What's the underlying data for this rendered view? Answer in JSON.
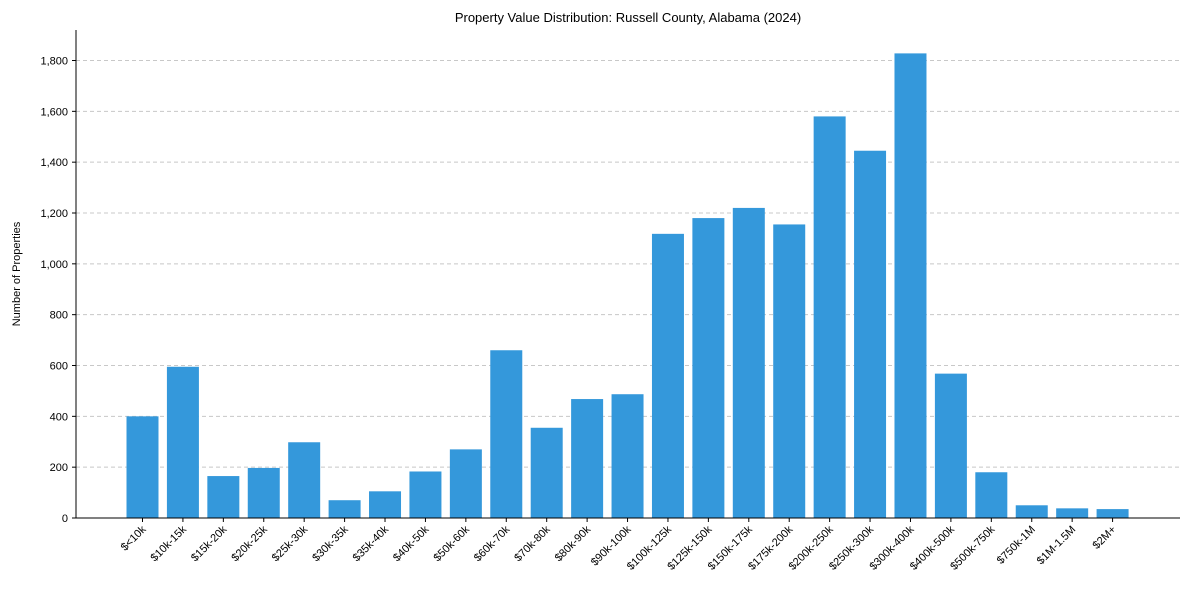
{
  "chart_data": {
    "type": "bar",
    "title": "Property Value Distribution: Russell County, Alabama (2024)",
    "xlabel": "",
    "ylabel": "Number of Properties",
    "categories": [
      "$<10k",
      "$10k-15k",
      "$15k-20k",
      "$20k-25k",
      "$25k-30k",
      "$30k-35k",
      "$35k-40k",
      "$40k-50k",
      "$50k-60k",
      "$60k-70k",
      "$70k-80k",
      "$80k-90k",
      "$90k-100k",
      "$100k-125k",
      "$125k-150k",
      "$150k-175k",
      "$175k-200k",
      "$200k-250k",
      "$250k-300k",
      "$300k-400k",
      "$400k-500k",
      "$500k-750k",
      "$750k-1M",
      "$1M-1.5M",
      "$2M+"
    ],
    "values": [
      400,
      595,
      165,
      197,
      298,
      70,
      105,
      183,
      270,
      660,
      355,
      468,
      487,
      1118,
      1180,
      1220,
      1155,
      1580,
      1445,
      1828,
      568,
      180,
      50,
      38,
      35
    ],
    "ylim": [
      0,
      1920
    ],
    "yticks": [
      0,
      200,
      400,
      600,
      800,
      1000,
      1200,
      1400,
      1600,
      1800
    ],
    "ytick_labels": [
      "0",
      "200",
      "400",
      "600",
      "800",
      "1,000",
      "1,200",
      "1,400",
      "1,600",
      "1,800"
    ],
    "grid": "y-dashed",
    "colors": {
      "bar": "#3498db",
      "grid": "#c8c8c8",
      "axis": "#000000"
    }
  }
}
